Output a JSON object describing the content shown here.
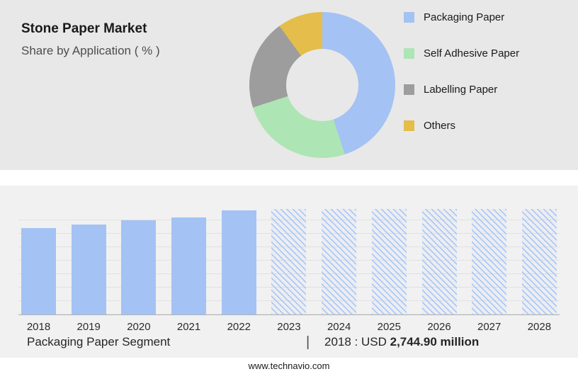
{
  "header": {
    "title": "Stone Paper Market",
    "subtitle": "Share by Application ( % )"
  },
  "footer": {
    "segment_label": "Packaging Paper Segment",
    "divider": "|",
    "value_prefix": "2018 : USD ",
    "value_bold": "2,744.90 million",
    "website": "www.technavio.com"
  },
  "chart_data": [
    {
      "type": "pie",
      "title": "Stone Paper Market — Share by Application ( % )",
      "legend_position": "right",
      "segments": [
        {
          "label": "Packaging Paper",
          "value": 45,
          "color": "#a4c2f4"
        },
        {
          "label": "Self Adhesive Paper",
          "value": 25,
          "color": "#aee5b4"
        },
        {
          "label": "Labelling Paper",
          "value": 20,
          "color": "#9d9d9d"
        },
        {
          "label": "Others",
          "value": 10,
          "color": "#e4bd4a"
        }
      ]
    },
    {
      "type": "bar",
      "title": "Packaging Paper Segment",
      "categories": [
        "2018",
        "2019",
        "2020",
        "2021",
        "2022",
        "2023",
        "2024",
        "2025",
        "2026",
        "2027",
        "2028"
      ],
      "series": [
        {
          "name": "Packaging Paper Segment (relative market size)",
          "values": [
            0.82,
            0.85,
            0.89,
            0.92,
            0.99,
            1.0,
            1.0,
            1.0,
            1.0,
            1.0,
            1.0
          ]
        }
      ],
      "forecast_start": "2023",
      "solid_color": "#a4c2f4",
      "grid": true,
      "ylim": [
        0,
        1
      ],
      "annotation": "2018 : USD 2,744.90 million"
    }
  ]
}
